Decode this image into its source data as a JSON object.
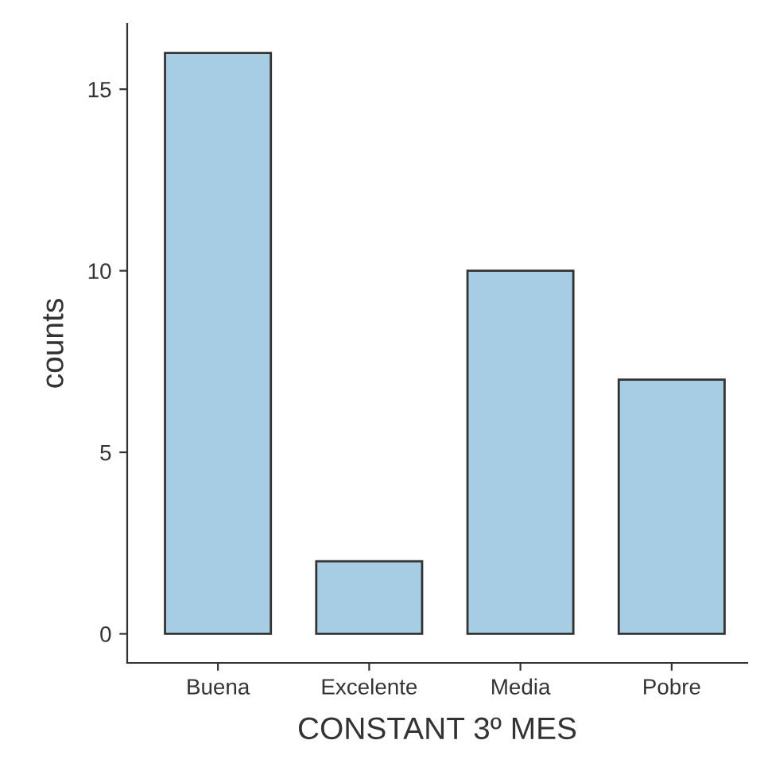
{
  "chart_data": {
    "type": "bar",
    "xlabel": "CONSTANT 3º MES",
    "ylabel": "counts",
    "categories": [
      "Buena",
      "Excelente",
      "Media",
      "Pobre"
    ],
    "values": [
      16,
      2,
      10,
      7
    ],
    "color": "#a6cde4",
    "ylim": [
      -0.8,
      16.8
    ],
    "yticks": [
      0,
      5,
      10,
      15
    ],
    "grid": false,
    "legend": false
  }
}
